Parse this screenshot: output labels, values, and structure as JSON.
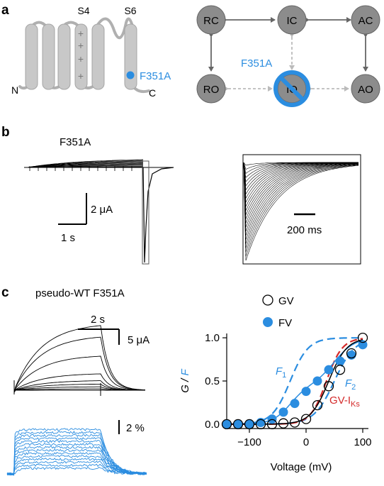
{
  "panels": {
    "a": {
      "letter": "a",
      "topology": {
        "segment_labels": [
          "S4",
          "S6"
        ],
        "n_label": "N",
        "c_label": "C",
        "charges": [
          "+",
          "+",
          "+",
          "+"
        ],
        "mutation_label": "F351A"
      },
      "states": {
        "rc": "RC",
        "ic": "IC",
        "ac": "AC",
        "ro": "RO",
        "io": "IO",
        "ao": "AO"
      },
      "state_mutation_label": "F351A"
    },
    "b": {
      "letter": "b",
      "title": "F351A",
      "scale_current": "2 μA",
      "scale_time": "1 s",
      "inset_scale": "200 ms"
    },
    "c": {
      "letter": "c",
      "title": "pseudo-WT F351A",
      "scale_time": "2 s",
      "scale_current": "5 μA",
      "scale_fluor": "2 %"
    }
  },
  "colors": {
    "accent": "#2b8de0",
    "red": "#d42a2a",
    "gray": "#c8c8c8",
    "state": "#888888"
  },
  "chart_data": {
    "type": "scatter",
    "xlabel": "Voltage (mV)",
    "ylabel": "G / F",
    "xlim": [
      -140,
      110
    ],
    "ylim": [
      -0.05,
      1.05
    ],
    "xticks": [
      -100,
      0,
      100
    ],
    "xtick_labels": [
      "−100",
      "0",
      "100"
    ],
    "yticks": [
      0,
      0.5,
      1
    ],
    "ytick_labels": [
      "0.0",
      "0.5",
      "1.0"
    ],
    "legend": [
      {
        "name": "GV",
        "marker": "open-circle"
      },
      {
        "name": "FV",
        "marker": "filled-circle"
      }
    ],
    "series": [
      {
        "name": "GV",
        "x": [
          -140,
          -120,
          -100,
          -80,
          -60,
          -40,
          -20,
          0,
          20,
          40,
          60,
          80,
          100
        ],
        "y": [
          0,
          0,
          0,
          0,
          0,
          0.01,
          0.02,
          0.06,
          0.22,
          0.44,
          0.63,
          0.82,
          1.0
        ]
      },
      {
        "name": "FV",
        "x": [
          -140,
          -120,
          -100,
          -80,
          -60,
          -40,
          -20,
          0,
          20,
          40,
          60,
          80,
          100
        ],
        "y": [
          0,
          0,
          0,
          0.02,
          0.06,
          0.14,
          0.24,
          0.38,
          0.5,
          0.63,
          0.73,
          0.8,
          0.92
        ]
      }
    ],
    "curve_labels": {
      "f1": "F",
      "f1_sub": "1",
      "f2": "F",
      "f2_sub": "2",
      "gvks": "GV-I",
      "gvks_sub": "Ks"
    }
  }
}
